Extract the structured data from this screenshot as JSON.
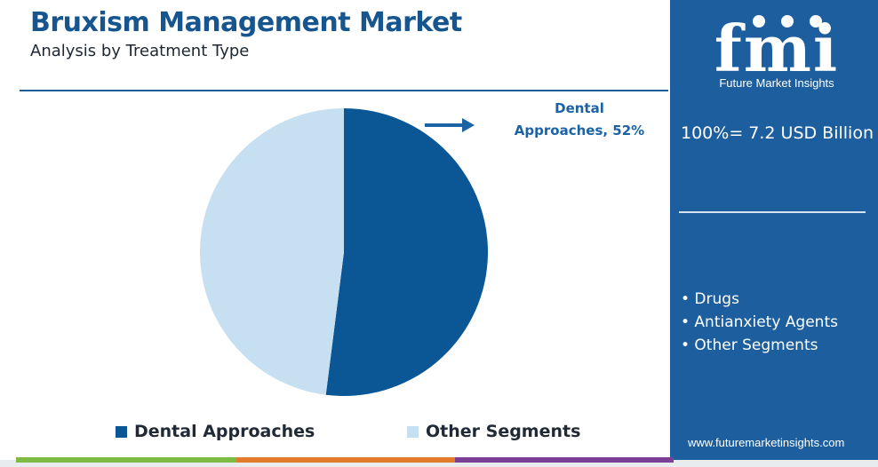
{
  "header": {
    "title": "Bruxism Management Market",
    "subtitle": "Analysis by Treatment Type"
  },
  "chart_data": {
    "type": "pie",
    "slices": [
      {
        "name": "Dental Approaches",
        "value": 52,
        "color": "#0b5694"
      },
      {
        "name": "Other Segments",
        "value": 48,
        "color": "#c7e0f1"
      }
    ],
    "callout": {
      "line1": "Dental",
      "line2": "Approaches, 52%",
      "color": "#1b63a4"
    },
    "legend": [
      "Dental Approaches",
      "Other Segments"
    ]
  },
  "panel": {
    "logo_text": "fmi",
    "logo_caption": "Future Market Insights",
    "total": "100%= 7.2 USD Billion",
    "segments": [
      "• Drugs",
      "•  Antianxiety Agents",
      "• Other Segments"
    ],
    "website": "www.futuremarketinsights.com",
    "background": "#1d5f9e"
  },
  "footer": {
    "bar_colors": [
      "#7dbb43",
      "#e47b2b",
      "#7b3f98"
    ]
  }
}
